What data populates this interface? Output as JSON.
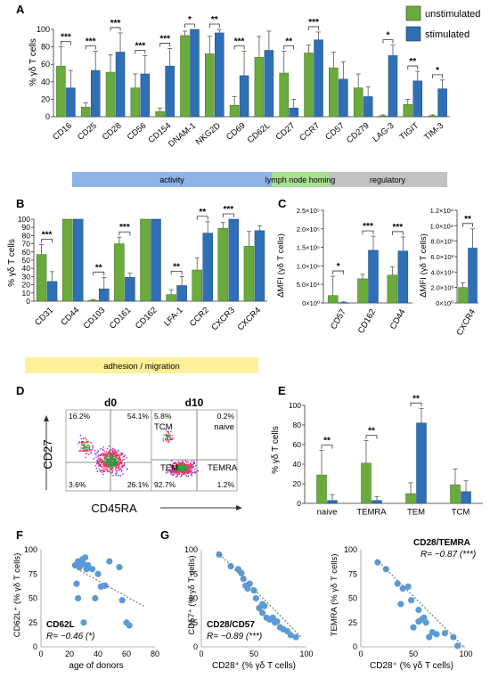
{
  "colors": {
    "unstim": "#6aab3c",
    "stim": "#2e6fb6",
    "unstim_edge": "#3f6e24",
    "stim_edge": "#1f4c80",
    "activity": "#8eb3e6",
    "lymph": "#a9df93",
    "regulatory": "#c2c2c2",
    "adhesion": "#fff199",
    "trend": "#777777",
    "point": "#5b9bd5"
  },
  "panels": {
    "A": {
      "letter": "A",
      "ylabel": "% γδ T cells",
      "legend": [
        "unstimulated",
        "stimulated"
      ],
      "categories": [
        {
          "name": "activity",
          "label": "activity"
        },
        {
          "name": "lymph",
          "label": "lymph node homing"
        },
        {
          "name": "regulatory",
          "label": "regulatory"
        }
      ]
    },
    "B": {
      "letter": "B",
      "ylabel": "% γδ T cells",
      "band": "adhesion / migration"
    },
    "C": {
      "letter": "C",
      "ylabel": "ΔMFI (γδ T cells)"
    },
    "D": {
      "letter": "D",
      "d0": "d0",
      "d10": "d10",
      "ylabel": "CD27",
      "xlabel": "CD45RA",
      "d0_quadrants": [
        "16.2%",
        "54.1%",
        "3.6%",
        "26.1%"
      ],
      "d10_quadrants": [
        "5.8%",
        "0.2%",
        "92.7%",
        "1.2%"
      ],
      "d10_labels": [
        "TCM",
        "naive",
        "TEM",
        "TEMRA"
      ]
    },
    "E": {
      "letter": "E",
      "ylabel": "% γδ T cells"
    },
    "F": {
      "letter": "F",
      "ylabel": "CD62L⁺ (% γδ T cells)",
      "xlabel": "age of donors",
      "title": "CD62L",
      "r": "R= −0.46 (*)"
    },
    "G": {
      "letter": "G",
      "ylabel1": "CD57⁺ (% γδ T cells)",
      "xlabel1": "CD28⁺ (% γδ T cells)",
      "title1": "CD28/CD57",
      "r1": "R= −0.89 (***)",
      "ylabel2": "TEMRA (% γδ T cells)",
      "xlabel2": "CD28⁺ (% γδ T cells)",
      "title2": "CD28/TEMRA",
      "r2": "R= −0.87 (***)"
    }
  },
  "chart_data": [
    {
      "id": "A",
      "type": "bar",
      "ylabel": "% γδ T cells",
      "ylim": [
        0,
        100
      ],
      "yticks": [
        "0",
        "20",
        "40",
        "60",
        "80",
        "100"
      ],
      "categories": [
        "CD16",
        "CD25",
        "CD28",
        "CD56",
        "CD154",
        "DNAM-1",
        "NKG2D",
        "CD69",
        "CD62L",
        "CD27",
        "CCR7",
        "CD57",
        "CD279",
        "LAG-3",
        "TIGIT",
        "TIM-3"
      ],
      "series": [
        {
          "name": "unstimulated",
          "values": [
            58,
            11,
            51,
            33,
            6,
            93,
            72,
            13,
            68,
            50,
            73,
            56,
            33,
            1,
            14,
            1
          ],
          "errors": [
            22,
            5,
            20,
            16,
            4,
            5,
            20,
            10,
            24,
            25,
            9,
            18,
            16,
            1,
            6,
            1
          ]
        },
        {
          "name": "stimulated",
          "values": [
            33,
            53,
            74,
            49,
            58,
            100,
            96,
            47,
            76,
            10,
            88,
            43,
            23,
            70,
            41,
            32
          ],
          "errors": [
            20,
            22,
            22,
            21,
            20,
            0,
            4,
            28,
            22,
            10,
            9,
            20,
            11,
            12,
            11,
            10
          ]
        }
      ],
      "significance": [
        {
          "cat": "CD16",
          "label": "***"
        },
        {
          "cat": "CD25",
          "label": "***"
        },
        {
          "cat": "CD28",
          "label": "***"
        },
        {
          "cat": "CD56",
          "label": "***"
        },
        {
          "cat": "CD154",
          "label": "***"
        },
        {
          "cat": "DNAM-1",
          "label": "*"
        },
        {
          "cat": "NKG2D",
          "label": "**"
        },
        {
          "cat": "CD69",
          "label": "***"
        },
        {
          "cat": "CD27",
          "label": "**"
        },
        {
          "cat": "CCR7",
          "label": "***"
        },
        {
          "cat": "LAG-3",
          "label": "*"
        },
        {
          "cat": "TIGIT",
          "label": "**"
        },
        {
          "cat": "TIM-3",
          "label": "*"
        }
      ]
    },
    {
      "id": "B",
      "type": "bar",
      "ylabel": "% γδ T cells",
      "ylim": [
        0,
        100
      ],
      "yticks": [
        "0",
        "10",
        "20",
        "30",
        "40",
        "50",
        "60",
        "70",
        "80",
        "90",
        "100"
      ],
      "categories": [
        "CD31",
        "CD44",
        "CD103",
        "CD161",
        "CD162",
        "LFA-1",
        "CCR2",
        "CXCR3",
        "CXCR4"
      ],
      "series": [
        {
          "name": "unstimulated",
          "values": [
            57,
            100,
            1,
            70,
            100,
            8,
            38,
            89,
            67
          ],
          "errors": [
            12,
            0,
            1,
            8,
            0,
            6,
            15,
            7,
            18
          ]
        },
        {
          "name": "stimulated",
          "values": [
            24,
            100,
            15,
            29,
            100,
            19,
            83,
            100,
            86
          ],
          "errors": [
            12,
            0,
            14,
            5,
            0,
            11,
            14,
            0,
            6
          ]
        }
      ],
      "significance": [
        {
          "cat": "CD31",
          "label": "***"
        },
        {
          "cat": "CD103",
          "label": "**"
        },
        {
          "cat": "CD161",
          "label": "***"
        },
        {
          "cat": "LFA-1",
          "label": "**"
        },
        {
          "cat": "CCR2",
          "label": "**"
        },
        {
          "cat": "CXCR3",
          "label": "***"
        }
      ]
    },
    {
      "id": "C1",
      "type": "bar",
      "ylabel": "ΔMFI (γδ T cells)",
      "ylim": [
        0,
        250000
      ],
      "yticks": [
        "0×10⁰",
        "5.0×10⁴",
        "1.0×10⁵",
        "1.5×10⁵",
        "2.0×10⁵",
        "2.5×10⁵"
      ],
      "categories": [
        "CD57",
        "CD162",
        "CD44"
      ],
      "series": [
        {
          "name": "unstimulated",
          "values": [
            20000,
            65000,
            75000
          ],
          "errors": [
            52000,
            12000,
            22000
          ]
        },
        {
          "name": "stimulated",
          "values": [
            1000,
            142000,
            140000
          ],
          "errors": [
            2000,
            38000,
            38000
          ]
        }
      ],
      "significance": [
        {
          "cat": "CD57",
          "label": "*"
        },
        {
          "cat": "CD162",
          "label": "***"
        },
        {
          "cat": "CD44",
          "label": "***"
        }
      ]
    },
    {
      "id": "C2",
      "type": "bar",
      "ylabel": "ΔMFI (γδ T cells)",
      "ylim": [
        0,
        12000
      ],
      "yticks": [
        "0×10⁰",
        "2.0×10³",
        "4.0×10³",
        "6.0×10³",
        "8.0×10³",
        "1.0×10⁴",
        "1.2×10⁴"
      ],
      "categories": [
        "CXCR4"
      ],
      "series": [
        {
          "name": "unstimulated",
          "values": [
            2000
          ],
          "errors": [
            600
          ]
        },
        {
          "name": "stimulated",
          "values": [
            7100
          ],
          "errors": [
            2500
          ]
        }
      ],
      "significance": [
        {
          "cat": "CXCR4",
          "label": "**"
        }
      ]
    },
    {
      "id": "E",
      "type": "bar",
      "ylabel": "% γδ T cells",
      "ylim": [
        0,
        100
      ],
      "yticks": [
        "0",
        "20",
        "40",
        "60",
        "80",
        "100"
      ],
      "categories": [
        "naive",
        "TEMRA",
        "TEM",
        "TCM"
      ],
      "series": [
        {
          "name": "unstimulated",
          "values": [
            29,
            41,
            10,
            19
          ],
          "errors": [
            25,
            23,
            11,
            16
          ]
        },
        {
          "name": "stimulated",
          "values": [
            3,
            3,
            82,
            12
          ],
          "errors": [
            6,
            4,
            15,
            11
          ]
        }
      ],
      "significance": [
        {
          "cat": "naive",
          "label": "**"
        },
        {
          "cat": "TEMRA",
          "label": "**"
        },
        {
          "cat": "TEM",
          "label": "**"
        }
      ]
    },
    {
      "id": "F",
      "type": "scatter",
      "xlabel": "age of donors",
      "ylabel": "CD62L⁺ (% γδ T cells)",
      "xlim": [
        0,
        80
      ],
      "ylim": [
        0,
        100
      ],
      "xticks": [
        "0",
        "20",
        "40",
        "60",
        "80"
      ],
      "yticks": [
        "0",
        "25",
        "50",
        "75",
        "100"
      ],
      "points": [
        [
          24,
          84
        ],
        [
          25,
          65
        ],
        [
          26,
          50
        ],
        [
          26,
          88
        ],
        [
          27,
          82
        ],
        [
          28,
          85
        ],
        [
          29,
          90
        ],
        [
          30,
          85
        ],
        [
          30,
          25
        ],
        [
          31,
          92
        ],
        [
          32,
          80
        ],
        [
          33,
          84
        ],
        [
          36,
          80
        ],
        [
          38,
          50
        ],
        [
          40,
          75
        ],
        [
          42,
          62
        ],
        [
          45,
          63
        ],
        [
          48,
          88
        ],
        [
          55,
          82
        ],
        [
          57,
          48
        ],
        [
          60,
          25
        ],
        [
          62,
          22
        ]
      ],
      "trend": [
        [
          23,
          82
        ],
        [
          72,
          42
        ]
      ]
    },
    {
      "id": "G1",
      "type": "scatter",
      "xlabel": "CD28⁺ (% γδ T cells)",
      "ylabel": "CD57⁺ (% γδ T cells)",
      "xlim": [
        0,
        100
      ],
      "ylim": [
        0,
        100
      ],
      "xticks": [
        "0",
        "50",
        "100"
      ],
      "yticks": [
        "0",
        "25",
        "50",
        "75",
        "100"
      ],
      "points": [
        [
          17,
          95
        ],
        [
          28,
          83
        ],
        [
          35,
          80
        ],
        [
          38,
          76
        ],
        [
          40,
          70
        ],
        [
          42,
          63
        ],
        [
          44,
          60
        ],
        [
          46,
          65
        ],
        [
          50,
          58
        ],
        [
          52,
          50
        ],
        [
          55,
          40
        ],
        [
          58,
          44
        ],
        [
          58,
          35
        ],
        [
          60,
          42
        ],
        [
          62,
          30
        ],
        [
          65,
          28
        ],
        [
          68,
          30
        ],
        [
          70,
          25
        ],
        [
          72,
          26
        ],
        [
          75,
          20
        ],
        [
          78,
          18
        ],
        [
          82,
          16
        ],
        [
          85,
          12
        ],
        [
          90,
          10
        ]
      ],
      "trend": [
        [
          15,
          98
        ],
        [
          95,
          10
        ]
      ]
    },
    {
      "id": "G2",
      "type": "scatter",
      "xlabel": "CD28⁺ (% γδ T cells)",
      "ylabel": "TEMRA (% γδ T cells)",
      "xlim": [
        0,
        100
      ],
      "ylim": [
        0,
        100
      ],
      "xticks": [
        "0",
        "50",
        "100"
      ],
      "yticks": [
        "0",
        "25",
        "50",
        "75",
        "100"
      ],
      "points": [
        [
          16,
          87
        ],
        [
          24,
          80
        ],
        [
          35,
          65
        ],
        [
          38,
          44
        ],
        [
          40,
          60
        ],
        [
          45,
          62
        ],
        [
          48,
          48
        ],
        [
          50,
          20
        ],
        [
          55,
          38
        ],
        [
          55,
          26
        ],
        [
          58,
          28
        ],
        [
          60,
          30
        ],
        [
          62,
          25
        ],
        [
          65,
          10
        ],
        [
          68,
          15
        ],
        [
          72,
          13
        ],
        [
          80,
          14
        ],
        [
          88,
          10
        ],
        [
          92,
          1
        ]
      ],
      "trend": [
        [
          15,
          90
        ],
        [
          98,
          0
        ]
      ]
    }
  ]
}
